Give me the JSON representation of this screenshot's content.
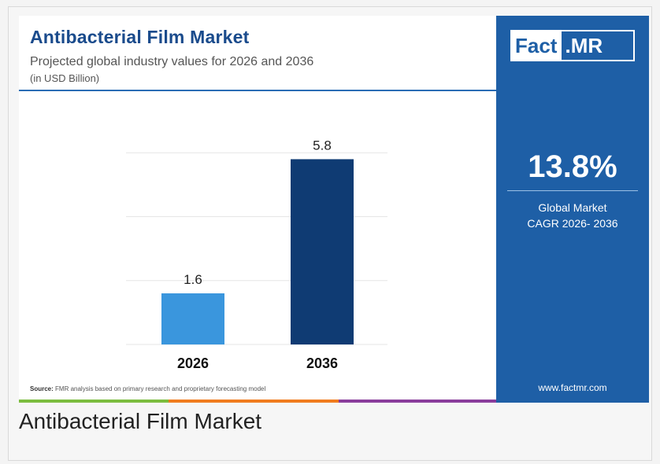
{
  "infographic": {
    "title": "Antibacterial Film Market",
    "subtitle": "Projected global industry values for 2026 and 2036",
    "unit": "(in USD Billion)",
    "source_label": "Source:",
    "source_text": " FMR analysis based on primary research and proprietary forecasting model"
  },
  "brand": {
    "logo_left": "Fact",
    "logo_right": ".MR",
    "website": "www.factmr.com"
  },
  "cagr": {
    "value": "13.8%",
    "label_line1": "Global Market",
    "label_line2": "CAGR 2026- 2036"
  },
  "caption": "Antibacterial Film Market",
  "colors": {
    "title": "#1a4b8c",
    "panel": "#1e5fa6",
    "bar_2026": "#3a96dd",
    "bar_2036": "#0f3b73",
    "bottom_stripes": [
      "#7cbd3f",
      "#f07c1e",
      "#8a3d9c",
      "#1e5fa6"
    ]
  },
  "chart_data": {
    "type": "bar",
    "categories": [
      "2026",
      "2036"
    ],
    "values": [
      1.6,
      5.8
    ],
    "data_labels": [
      "1.6",
      "5.8"
    ],
    "title": "",
    "xlabel": "",
    "ylabel": "",
    "ylim": [
      0,
      6.5
    ],
    "grid": true,
    "legend": "none"
  }
}
